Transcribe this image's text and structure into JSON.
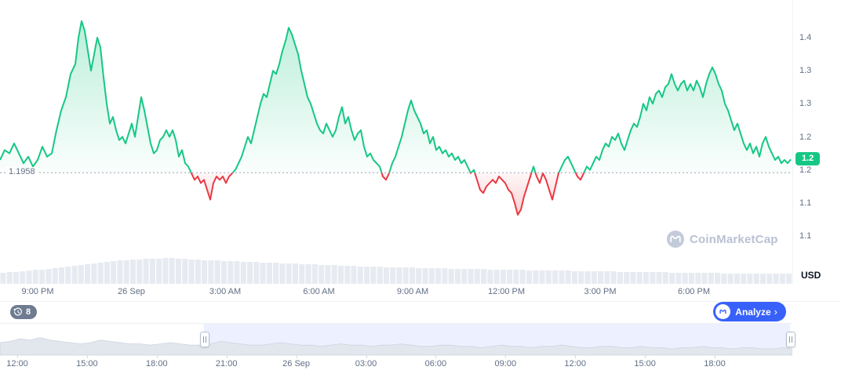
{
  "chart_data": {
    "type": "area",
    "title": "",
    "unit": "USD",
    "baseline": {
      "value": 1.1958,
      "label": "1.1958"
    },
    "current_price": {
      "value": 1.216,
      "label": "1.2"
    },
    "ylim": [
      1.1,
      1.4
    ],
    "colors": {
      "up": "#16c784",
      "down": "#ea3943",
      "accent": "#3861fb",
      "volume": "#e7ebf1"
    },
    "y_ticks": [
      {
        "label": "1.4",
        "value": 1.4
      },
      {
        "label": "1.3",
        "value": 1.35
      },
      {
        "label": "1.3",
        "value": 1.3
      },
      {
        "label": "1.2",
        "value": 1.25
      },
      {
        "label": "1.2",
        "value": 1.2
      },
      {
        "label": "1.1",
        "value": 1.15
      },
      {
        "label": "1.1",
        "value": 1.1
      }
    ],
    "x_tick_labels": [
      "9:00 PM",
      "26 Sep",
      "3:00 AM",
      "6:00 AM",
      "9:00 AM",
      "12:00 PM",
      "3:00 PM",
      "6:00 PM"
    ],
    "points": [
      [
        0,
        1.215
      ],
      [
        6,
        1.23
      ],
      [
        12,
        1.225
      ],
      [
        18,
        1.24
      ],
      [
        24,
        1.225
      ],
      [
        30,
        1.21
      ],
      [
        36,
        1.22
      ],
      [
        42,
        1.205
      ],
      [
        48,
        1.215
      ],
      [
        54,
        1.235
      ],
      [
        60,
        1.22
      ],
      [
        66,
        1.225
      ],
      [
        72,
        1.26
      ],
      [
        78,
        1.29
      ],
      [
        84,
        1.31
      ],
      [
        90,
        1.345
      ],
      [
        96,
        1.36
      ],
      [
        100,
        1.4
      ],
      [
        104,
        1.425
      ],
      [
        108,
        1.41
      ],
      [
        112,
        1.38
      ],
      [
        116,
        1.35
      ],
      [
        120,
        1.375
      ],
      [
        124,
        1.4
      ],
      [
        128,
        1.385
      ],
      [
        132,
        1.34
      ],
      [
        136,
        1.3
      ],
      [
        140,
        1.27
      ],
      [
        144,
        1.28
      ],
      [
        148,
        1.26
      ],
      [
        152,
        1.245
      ],
      [
        156,
        1.25
      ],
      [
        160,
        1.24
      ],
      [
        164,
        1.255
      ],
      [
        168,
        1.27
      ],
      [
        172,
        1.25
      ],
      [
        176,
        1.28
      ],
      [
        180,
        1.31
      ],
      [
        184,
        1.29
      ],
      [
        188,
        1.265
      ],
      [
        192,
        1.24
      ],
      [
        196,
        1.225
      ],
      [
        200,
        1.23
      ],
      [
        204,
        1.245
      ],
      [
        208,
        1.25
      ],
      [
        212,
        1.26
      ],
      [
        216,
        1.25
      ],
      [
        220,
        1.26
      ],
      [
        224,
        1.245
      ],
      [
        228,
        1.22
      ],
      [
        232,
        1.23
      ],
      [
        236,
        1.21
      ],
      [
        240,
        1.205
      ],
      [
        244,
        1.195
      ],
      [
        248,
        1.185
      ],
      [
        252,
        1.19
      ],
      [
        256,
        1.18
      ],
      [
        260,
        1.185
      ],
      [
        264,
        1.17
      ],
      [
        268,
        1.155
      ],
      [
        272,
        1.18
      ],
      [
        276,
        1.19
      ],
      [
        280,
        1.185
      ],
      [
        284,
        1.19
      ],
      [
        288,
        1.18
      ],
      [
        292,
        1.19
      ],
      [
        296,
        1.195
      ],
      [
        300,
        1.2
      ],
      [
        304,
        1.21
      ],
      [
        308,
        1.22
      ],
      [
        312,
        1.235
      ],
      [
        316,
        1.25
      ],
      [
        320,
        1.24
      ],
      [
        324,
        1.26
      ],
      [
        328,
        1.28
      ],
      [
        332,
        1.3
      ],
      [
        336,
        1.315
      ],
      [
        340,
        1.31
      ],
      [
        344,
        1.33
      ],
      [
        348,
        1.35
      ],
      [
        352,
        1.345
      ],
      [
        356,
        1.36
      ],
      [
        360,
        1.38
      ],
      [
        364,
        1.395
      ],
      [
        368,
        1.415
      ],
      [
        372,
        1.405
      ],
      [
        376,
        1.39
      ],
      [
        380,
        1.375
      ],
      [
        384,
        1.35
      ],
      [
        388,
        1.33
      ],
      [
        392,
        1.31
      ],
      [
        396,
        1.3
      ],
      [
        400,
        1.285
      ],
      [
        404,
        1.27
      ],
      [
        408,
        1.26
      ],
      [
        412,
        1.255
      ],
      [
        416,
        1.27
      ],
      [
        420,
        1.26
      ],
      [
        424,
        1.25
      ],
      [
        428,
        1.26
      ],
      [
        432,
        1.28
      ],
      [
        436,
        1.295
      ],
      [
        440,
        1.27
      ],
      [
        444,
        1.28
      ],
      [
        448,
        1.26
      ],
      [
        452,
        1.245
      ],
      [
        456,
        1.255
      ],
      [
        460,
        1.26
      ],
      [
        464,
        1.235
      ],
      [
        468,
        1.22
      ],
      [
        472,
        1.225
      ],
      [
        476,
        1.215
      ],
      [
        480,
        1.21
      ],
      [
        484,
        1.205
      ],
      [
        488,
        1.19
      ],
      [
        492,
        1.185
      ],
      [
        496,
        1.195
      ],
      [
        500,
        1.21
      ],
      [
        504,
        1.22
      ],
      [
        508,
        1.235
      ],
      [
        512,
        1.25
      ],
      [
        516,
        1.27
      ],
      [
        520,
        1.29
      ],
      [
        524,
        1.305
      ],
      [
        528,
        1.29
      ],
      [
        532,
        1.28
      ],
      [
        536,
        1.27
      ],
      [
        540,
        1.255
      ],
      [
        544,
        1.26
      ],
      [
        548,
        1.24
      ],
      [
        552,
        1.25
      ],
      [
        556,
        1.23
      ],
      [
        560,
        1.235
      ],
      [
        564,
        1.225
      ],
      [
        568,
        1.23
      ],
      [
        572,
        1.22
      ],
      [
        576,
        1.225
      ],
      [
        580,
        1.215
      ],
      [
        584,
        1.22
      ],
      [
        588,
        1.21
      ],
      [
        592,
        1.215
      ],
      [
        596,
        1.205
      ],
      [
        600,
        1.195
      ],
      [
        604,
        1.2
      ],
      [
        608,
        1.185
      ],
      [
        612,
        1.17
      ],
      [
        616,
        1.165
      ],
      [
        620,
        1.175
      ],
      [
        624,
        1.18
      ],
      [
        628,
        1.185
      ],
      [
        632,
        1.18
      ],
      [
        636,
        1.19
      ],
      [
        640,
        1.185
      ],
      [
        644,
        1.18
      ],
      [
        648,
        1.17
      ],
      [
        652,
        1.165
      ],
      [
        656,
        1.15
      ],
      [
        660,
        1.132
      ],
      [
        664,
        1.14
      ],
      [
        668,
        1.16
      ],
      [
        672,
        1.175
      ],
      [
        676,
        1.19
      ],
      [
        680,
        1.205
      ],
      [
        684,
        1.19
      ],
      [
        688,
        1.18
      ],
      [
        692,
        1.195
      ],
      [
        696,
        1.185
      ],
      [
        700,
        1.17
      ],
      [
        704,
        1.155
      ],
      [
        708,
        1.175
      ],
      [
        712,
        1.195
      ],
      [
        716,
        1.205
      ],
      [
        720,
        1.215
      ],
      [
        724,
        1.22
      ],
      [
        728,
        1.21
      ],
      [
        732,
        1.2
      ],
      [
        736,
        1.19
      ],
      [
        740,
        1.185
      ],
      [
        744,
        1.195
      ],
      [
        748,
        1.205
      ],
      [
        752,
        1.2
      ],
      [
        756,
        1.21
      ],
      [
        760,
        1.22
      ],
      [
        764,
        1.215
      ],
      [
        768,
        1.23
      ],
      [
        772,
        1.24
      ],
      [
        776,
        1.235
      ],
      [
        780,
        1.25
      ],
      [
        784,
        1.245
      ],
      [
        788,
        1.255
      ],
      [
        792,
        1.24
      ],
      [
        796,
        1.23
      ],
      [
        800,
        1.245
      ],
      [
        804,
        1.26
      ],
      [
        808,
        1.27
      ],
      [
        812,
        1.265
      ],
      [
        816,
        1.28
      ],
      [
        820,
        1.3
      ],
      [
        824,
        1.29
      ],
      [
        828,
        1.31
      ],
      [
        832,
        1.3
      ],
      [
        836,
        1.315
      ],
      [
        840,
        1.32
      ],
      [
        844,
        1.31
      ],
      [
        848,
        1.325
      ],
      [
        852,
        1.33
      ],
      [
        856,
        1.345
      ],
      [
        860,
        1.33
      ],
      [
        864,
        1.32
      ],
      [
        868,
        1.33
      ],
      [
        872,
        1.335
      ],
      [
        876,
        1.32
      ],
      [
        880,
        1.33
      ],
      [
        884,
        1.32
      ],
      [
        888,
        1.335
      ],
      [
        892,
        1.325
      ],
      [
        896,
        1.31
      ],
      [
        900,
        1.33
      ],
      [
        904,
        1.345
      ],
      [
        908,
        1.355
      ],
      [
        912,
        1.345
      ],
      [
        916,
        1.33
      ],
      [
        920,
        1.32
      ],
      [
        924,
        1.3
      ],
      [
        928,
        1.29
      ],
      [
        932,
        1.275
      ],
      [
        936,
        1.26
      ],
      [
        940,
        1.27
      ],
      [
        944,
        1.255
      ],
      [
        948,
        1.24
      ],
      [
        952,
        1.23
      ],
      [
        956,
        1.24
      ],
      [
        960,
        1.225
      ],
      [
        964,
        1.235
      ],
      [
        968,
        1.22
      ],
      [
        972,
        1.24
      ],
      [
        976,
        1.25
      ],
      [
        980,
        1.235
      ],
      [
        984,
        1.225
      ],
      [
        988,
        1.215
      ],
      [
        992,
        1.22
      ],
      [
        996,
        1.21
      ],
      [
        1000,
        1.215
      ],
      [
        1004,
        1.21
      ],
      [
        1008,
        1.216
      ]
    ],
    "volume": [
      14,
      15,
      15,
      16,
      17,
      18,
      18,
      19,
      20,
      21,
      22,
      23,
      24,
      25,
      26,
      27,
      28,
      29,
      30,
      30,
      31,
      31,
      32,
      32,
      32,
      33,
      33,
      32,
      32,
      31,
      31,
      30,
      30,
      30,
      29,
      29,
      29,
      28,
      28,
      28,
      27,
      27,
      27,
      26,
      26,
      26,
      25,
      25,
      25,
      24,
      24,
      24,
      23,
      23,
      23,
      22,
      22,
      22,
      22,
      21,
      21,
      21,
      21,
      21,
      20,
      20,
      20,
      20,
      20,
      19,
      19,
      19,
      19,
      19,
      19,
      18,
      18,
      18,
      18,
      18,
      18,
      17,
      17,
      17,
      17,
      17,
      17,
      17,
      16,
      16,
      16,
      16,
      16,
      16,
      16,
      15,
      15,
      15,
      15,
      15,
      15,
      15,
      15,
      14,
      14,
      14,
      14,
      14,
      14,
      14,
      14,
      13,
      13,
      13,
      13,
      13,
      13,
      13,
      13,
      13,
      13,
      13
    ]
  },
  "navigator": {
    "labels": [
      "12:00",
      "15:00",
      "18:00",
      "21:00",
      "26 Sep",
      "03:00",
      "06:00",
      "09:00",
      "12:00",
      "15:00",
      "18:00"
    ],
    "selection": [
      0.257,
      0.997
    ],
    "heights": [
      10,
      11,
      13,
      12,
      14,
      12,
      11,
      10,
      9,
      10,
      12,
      11,
      10,
      9,
      9,
      8,
      9,
      10,
      9,
      8,
      8,
      9,
      11,
      10,
      9,
      8,
      8,
      9,
      10,
      9,
      8,
      8,
      7,
      8,
      9,
      8,
      8,
      7,
      8,
      8,
      9,
      8,
      7,
      7,
      8,
      8,
      7,
      7,
      6,
      7,
      8,
      7,
      7,
      6,
      7,
      7,
      8,
      7,
      6,
      6,
      7,
      7,
      6,
      6,
      7,
      6,
      6,
      5,
      6,
      6,
      7,
      6,
      6,
      5,
      6,
      6,
      5,
      5,
      6,
      5
    ]
  },
  "toolbar": {
    "history_count": "8",
    "analyze_label": "Analyze",
    "analyze_chevron": "›"
  },
  "watermark": {
    "text": "CoinMarketCap"
  }
}
